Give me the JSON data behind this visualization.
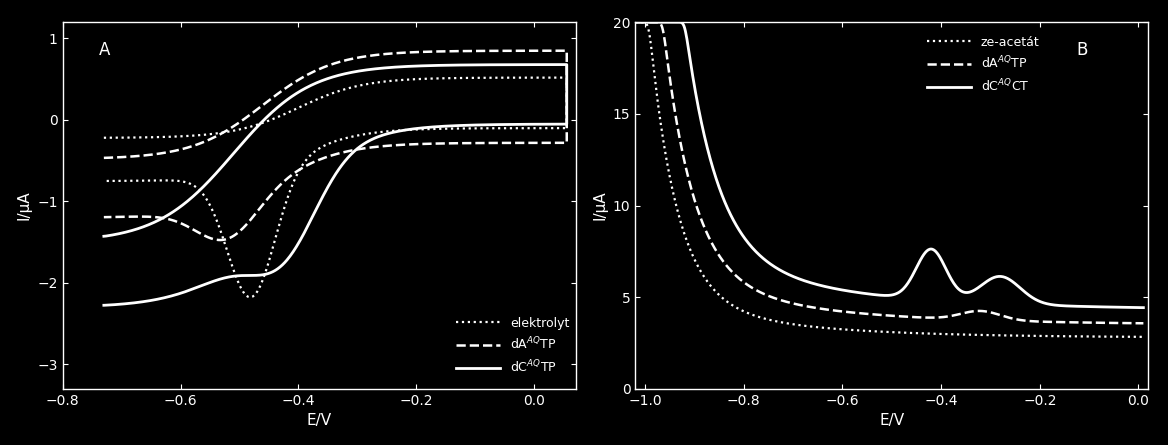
{
  "background_color": "#000000",
  "line_color": "#ffffff",
  "panel_A": {
    "label": "A",
    "xlabel": "E/V",
    "ylabel": "I/μA",
    "xlim": [
      -0.76,
      0.07
    ],
    "ylim": [
      -3.3,
      1.2
    ],
    "xticks": [
      -0.8,
      -0.6,
      -0.4,
      -0.2,
      0.0
    ],
    "yticks": [
      -3,
      -2,
      -1,
      0,
      1
    ],
    "legend_entries": [
      "elektrolyt",
      "dA$^{AQ}$TP",
      "dC$^{AQ}$TP"
    ],
    "legend_styles": [
      "dotted",
      "dashed",
      "solid"
    ]
  },
  "panel_B": {
    "label": "B",
    "xlabel": "E/V",
    "ylabel": "I/μA",
    "xlim": [
      -1.02,
      0.02
    ],
    "ylim": [
      0,
      20
    ],
    "xticks": [
      -1.0,
      -0.8,
      -0.6,
      -0.4,
      -0.2,
      0.0
    ],
    "yticks": [
      0,
      5,
      10,
      15,
      20
    ],
    "legend_entries": [
      "ze-acetát",
      "dA$^{AQ}$TP",
      "dC$^{AQ}$CT"
    ],
    "legend_styles": [
      "dotted",
      "dashed",
      "solid"
    ]
  }
}
